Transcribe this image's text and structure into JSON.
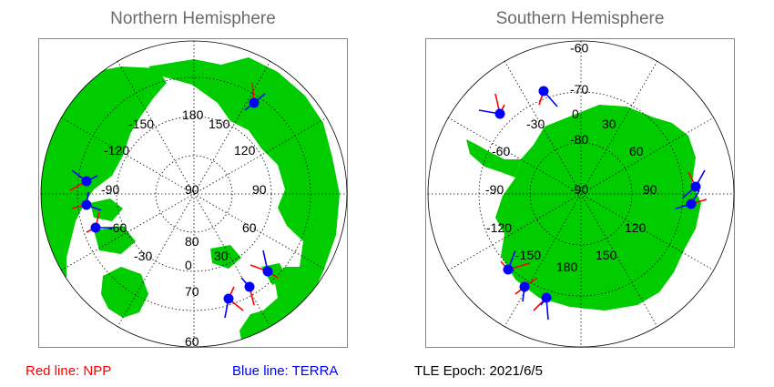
{
  "north": {
    "title": "Northern Hemisphere",
    "longitude_labels": [
      "180",
      "150",
      "-150",
      "120",
      "-120",
      "90",
      "-90",
      "60",
      "-60",
      "30",
      "-30",
      "0"
    ],
    "latitude_labels": [
      "90",
      "80",
      "70",
      "60"
    ]
  },
  "south": {
    "title": "Southern Hemisphere",
    "latitude_labels": [
      "-60",
      "-70",
      "-80",
      "-90"
    ],
    "longitude_labels": [
      "0",
      "-30",
      "30",
      "-60",
      "60",
      "-90",
      "90",
      "-120",
      "120",
      "-150",
      "150",
      "180"
    ]
  },
  "legend": {
    "npp_label": "Red line: NPP",
    "terra_label": "Blue line: TERRA",
    "npp_color": "#ff0000",
    "terra_color": "#0000ff"
  },
  "tle_epoch": "TLE Epoch: 2021/6/5",
  "colors": {
    "land": "#00cc00",
    "ocean": "#ffffff",
    "grid": "#000000",
    "frame": "#888888"
  },
  "icons": {
    "satellite_marker": "blue-dot-icon"
  }
}
